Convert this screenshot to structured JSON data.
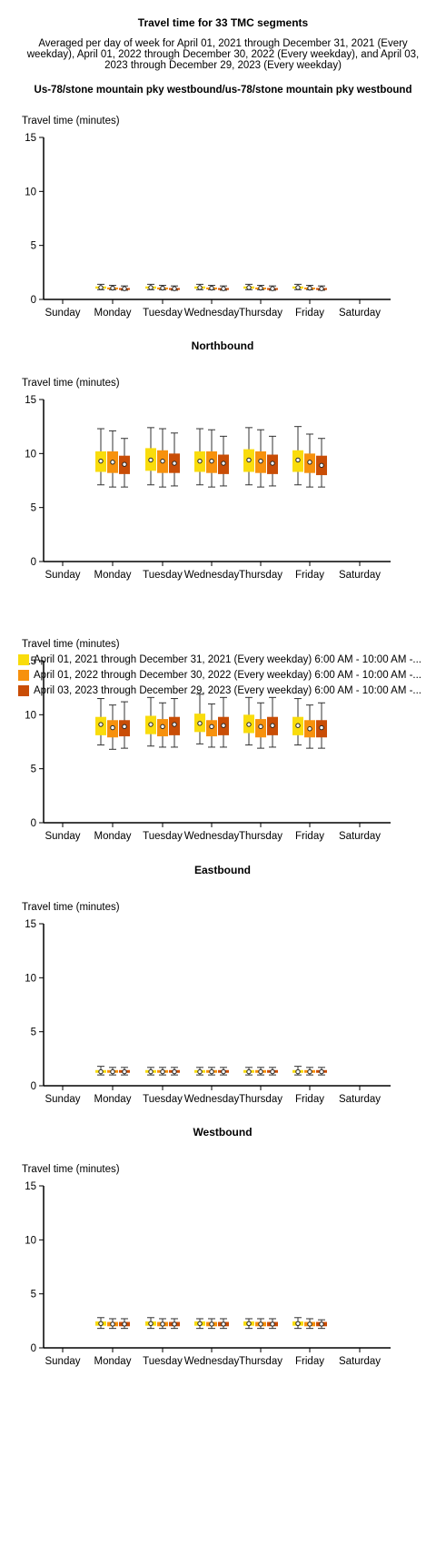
{
  "header": {
    "title": "Travel time for 33 TMC segments",
    "subtitle": "Averaged per day of week for April 01, 2021 through December 31, 2021 (Every weekday), April 01, 2022 through December 30, 2022 (Every weekday), and April 03, 2023 through December 29, 2023 (Every weekday)",
    "route": "Us-78/stone mountain pky westbound/us-78/stone mountain pky westbound"
  },
  "legend": {
    "items": [
      {
        "label": "April 01, 2021 through December 31, 2021 (Every weekday) 6:00 AM - 10:00 AM -...",
        "color": "#f9dc0c"
      },
      {
        "label": "April 01, 2022 through December 30, 2022 (Every weekday) 6:00 AM - 10:00 AM -...",
        "color": "#f7910d"
      },
      {
        "label": "April 03, 2023 through December 29, 2023 (Every weekday) 6:00 AM - 10:00 AM -...",
        "color": "#c94d06"
      }
    ]
  },
  "chart_data": [
    {
      "type": "boxplot",
      "title": "",
      "ylabel": "Travel time (minutes)",
      "ylim": [
        0,
        15
      ],
      "yticks": [
        0,
        5,
        10,
        15
      ],
      "categories": [
        "Sunday",
        "Monday",
        "Tuesday",
        "Wednesday",
        "Thursday",
        "Friday",
        "Saturday"
      ],
      "series": [
        {
          "color": "#f9dc0c",
          "boxes": [
            null,
            {
              "min": 0.9,
              "q1": 1.0,
              "median": 1.1,
              "q3": 1.2,
              "max": 1.4
            },
            {
              "min": 0.9,
              "q1": 1.0,
              "median": 1.1,
              "q3": 1.2,
              "max": 1.4
            },
            {
              "min": 0.9,
              "q1": 1.0,
              "median": 1.1,
              "q3": 1.2,
              "max": 1.4
            },
            {
              "min": 0.9,
              "q1": 1.0,
              "median": 1.1,
              "q3": 1.2,
              "max": 1.4
            },
            {
              "min": 0.9,
              "q1": 1.0,
              "median": 1.1,
              "q3": 1.2,
              "max": 1.4
            },
            null
          ]
        },
        {
          "color": "#f7910d",
          "boxes": [
            null,
            {
              "min": 0.9,
              "q1": 1.0,
              "median": 1.05,
              "q3": 1.1,
              "max": 1.3
            },
            {
              "min": 0.9,
              "q1": 1.0,
              "median": 1.05,
              "q3": 1.1,
              "max": 1.3
            },
            {
              "min": 0.9,
              "q1": 1.0,
              "median": 1.05,
              "q3": 1.1,
              "max": 1.3
            },
            {
              "min": 0.9,
              "q1": 1.0,
              "median": 1.05,
              "q3": 1.1,
              "max": 1.3
            },
            {
              "min": 0.9,
              "q1": 1.0,
              "median": 1.05,
              "q3": 1.1,
              "max": 1.3
            },
            null
          ]
        },
        {
          "color": "#c94d06",
          "boxes": [
            null,
            {
              "min": 0.85,
              "q1": 0.95,
              "median": 1.0,
              "q3": 1.05,
              "max": 1.25
            },
            {
              "min": 0.85,
              "q1": 0.95,
              "median": 1.0,
              "q3": 1.05,
              "max": 1.25
            },
            {
              "min": 0.85,
              "q1": 0.95,
              "median": 1.0,
              "q3": 1.05,
              "max": 1.25
            },
            {
              "min": 0.85,
              "q1": 0.95,
              "median": 1.0,
              "q3": 1.05,
              "max": 1.25
            },
            {
              "min": 0.85,
              "q1": 0.95,
              "median": 1.0,
              "q3": 1.05,
              "max": 1.25
            },
            null
          ]
        }
      ]
    },
    {
      "type": "boxplot",
      "title": "Northbound",
      "ylabel": "Travel time (minutes)",
      "ylim": [
        0,
        15
      ],
      "yticks": [
        0,
        5,
        10,
        15
      ],
      "categories": [
        "Sunday",
        "Monday",
        "Tuesday",
        "Wednesday",
        "Thursday",
        "Friday",
        "Saturday"
      ],
      "series": [
        {
          "color": "#f9dc0c",
          "boxes": [
            null,
            {
              "min": 7.1,
              "q1": 8.3,
              "median": 9.3,
              "q3": 10.2,
              "max": 12.3
            },
            {
              "min": 7.1,
              "q1": 8.4,
              "median": 9.4,
              "q3": 10.5,
              "max": 12.4
            },
            {
              "min": 7.1,
              "q1": 8.3,
              "median": 9.3,
              "q3": 10.2,
              "max": 12.3
            },
            {
              "min": 7.1,
              "q1": 8.3,
              "median": 9.4,
              "q3": 10.4,
              "max": 12.4
            },
            {
              "min": 7.1,
              "q1": 8.3,
              "median": 9.4,
              "q3": 10.3,
              "max": 12.5
            },
            null
          ]
        },
        {
          "color": "#f7910d",
          "boxes": [
            null,
            {
              "min": 6.9,
              "q1": 8.2,
              "median": 9.2,
              "q3": 10.2,
              "max": 12.1
            },
            {
              "min": 6.9,
              "q1": 8.2,
              "median": 9.3,
              "q3": 10.3,
              "max": 12.3
            },
            {
              "min": 6.9,
              "q1": 8.2,
              "median": 9.3,
              "q3": 10.2,
              "max": 12.2
            },
            {
              "min": 6.9,
              "q1": 8.2,
              "median": 9.3,
              "q3": 10.2,
              "max": 12.2
            },
            {
              "min": 6.9,
              "q1": 8.2,
              "median": 9.2,
              "q3": 10.0,
              "max": 11.8
            },
            null
          ]
        },
        {
          "color": "#c94d06",
          "boxes": [
            null,
            {
              "min": 6.9,
              "q1": 8.1,
              "median": 9.0,
              "q3": 9.8,
              "max": 11.4
            },
            {
              "min": 7.0,
              "q1": 8.2,
              "median": 9.1,
              "q3": 10.0,
              "max": 11.9
            },
            {
              "min": 7.0,
              "q1": 8.1,
              "median": 9.1,
              "q3": 9.9,
              "max": 11.6
            },
            {
              "min": 7.0,
              "q1": 8.1,
              "median": 9.1,
              "q3": 9.9,
              "max": 11.6
            },
            {
              "min": 6.9,
              "q1": 8.0,
              "median": 8.9,
              "q3": 9.8,
              "max": 11.4
            },
            null
          ]
        }
      ]
    },
    {
      "type": "boxplot",
      "title": "",
      "ylabel": "Travel time (minutes)",
      "ylim": [
        0,
        15
      ],
      "yticks": [
        0,
        5,
        10,
        15
      ],
      "categories": [
        "Sunday",
        "Monday",
        "Tuesday",
        "Wednesday",
        "Thursday",
        "Friday",
        "Saturday"
      ],
      "series": [
        {
          "color": "#f9dc0c",
          "boxes": [
            null,
            {
              "min": 7.2,
              "q1": 8.1,
              "median": 9.1,
              "q3": 9.8,
              "max": 11.5
            },
            {
              "min": 7.1,
              "q1": 8.2,
              "median": 9.1,
              "q3": 9.9,
              "max": 11.6
            },
            {
              "min": 7.3,
              "q1": 8.4,
              "median": 9.2,
              "q3": 10.1,
              "max": 11.9
            },
            {
              "min": 7.2,
              "q1": 8.3,
              "median": 9.1,
              "q3": 10.0,
              "max": 11.6
            },
            {
              "min": 7.2,
              "q1": 8.1,
              "median": 9.0,
              "q3": 9.8,
              "max": 11.5
            },
            null
          ]
        },
        {
          "color": "#f7910d",
          "boxes": [
            null,
            {
              "min": 6.8,
              "q1": 7.9,
              "median": 8.8,
              "q3": 9.5,
              "max": 10.9
            },
            {
              "min": 7.0,
              "q1": 8.0,
              "median": 8.9,
              "q3": 9.6,
              "max": 11.1
            },
            {
              "min": 7.0,
              "q1": 8.0,
              "median": 8.9,
              "q3": 9.5,
              "max": 11.0
            },
            {
              "min": 6.9,
              "q1": 7.9,
              "median": 8.9,
              "q3": 9.6,
              "max": 11.1
            },
            {
              "min": 6.9,
              "q1": 7.9,
              "median": 8.7,
              "q3": 9.5,
              "max": 10.9
            },
            null
          ]
        },
        {
          "color": "#c94d06",
          "boxes": [
            null,
            {
              "min": 6.9,
              "q1": 8.0,
              "median": 8.9,
              "q3": 9.5,
              "max": 11.2
            },
            {
              "min": 7.0,
              "q1": 8.1,
              "median": 9.1,
              "q3": 9.8,
              "max": 11.5
            },
            {
              "min": 7.0,
              "q1": 8.1,
              "median": 9.0,
              "q3": 9.8,
              "max": 11.6
            },
            {
              "min": 7.0,
              "q1": 8.1,
              "median": 9.0,
              "q3": 9.8,
              "max": 11.6
            },
            {
              "min": 6.9,
              "q1": 7.9,
              "median": 8.8,
              "q3": 9.5,
              "max": 11.1
            },
            null
          ]
        }
      ]
    },
    {
      "type": "boxplot",
      "title": "Eastbound",
      "ylabel": "Travel time (minutes)",
      "ylim": [
        0,
        15
      ],
      "yticks": [
        0,
        5,
        10,
        15
      ],
      "categories": [
        "Sunday",
        "Monday",
        "Tuesday",
        "Wednesday",
        "Thursday",
        "Friday",
        "Saturday"
      ],
      "series": [
        {
          "color": "#f9dc0c",
          "boxes": [
            null,
            {
              "min": 1.0,
              "q1": 1.2,
              "median": 1.3,
              "q3": 1.45,
              "max": 1.8
            },
            {
              "min": 1.0,
              "q1": 1.2,
              "median": 1.3,
              "q3": 1.45,
              "max": 1.7
            },
            {
              "min": 1.0,
              "q1": 1.2,
              "median": 1.3,
              "q3": 1.45,
              "max": 1.7
            },
            {
              "min": 1.0,
              "q1": 1.2,
              "median": 1.3,
              "q3": 1.45,
              "max": 1.7
            },
            {
              "min": 1.0,
              "q1": 1.2,
              "median": 1.3,
              "q3": 1.45,
              "max": 1.8
            },
            null
          ]
        },
        {
          "color": "#f7910d",
          "boxes": [
            null,
            {
              "min": 1.0,
              "q1": 1.2,
              "median": 1.3,
              "q3": 1.45,
              "max": 1.7
            },
            {
              "min": 1.0,
              "q1": 1.2,
              "median": 1.3,
              "q3": 1.45,
              "max": 1.7
            },
            {
              "min": 1.0,
              "q1": 1.2,
              "median": 1.3,
              "q3": 1.45,
              "max": 1.7
            },
            {
              "min": 1.0,
              "q1": 1.2,
              "median": 1.3,
              "q3": 1.45,
              "max": 1.7
            },
            {
              "min": 1.0,
              "q1": 1.2,
              "median": 1.3,
              "q3": 1.45,
              "max": 1.7
            },
            null
          ]
        },
        {
          "color": "#c94d06",
          "boxes": [
            null,
            {
              "min": 1.0,
              "q1": 1.2,
              "median": 1.3,
              "q3": 1.45,
              "max": 1.7
            },
            {
              "min": 1.0,
              "q1": 1.2,
              "median": 1.3,
              "q3": 1.45,
              "max": 1.7
            },
            {
              "min": 1.0,
              "q1": 1.2,
              "median": 1.3,
              "q3": 1.45,
              "max": 1.7
            },
            {
              "min": 1.0,
              "q1": 1.2,
              "median": 1.3,
              "q3": 1.45,
              "max": 1.7
            },
            {
              "min": 1.0,
              "q1": 1.2,
              "median": 1.3,
              "q3": 1.45,
              "max": 1.7
            },
            null
          ]
        }
      ]
    },
    {
      "type": "boxplot",
      "title": "Westbound",
      "ylabel": "Travel time (minutes)",
      "ylim": [
        0,
        15
      ],
      "yticks": [
        0,
        5,
        10,
        15
      ],
      "categories": [
        "Sunday",
        "Monday",
        "Tuesday",
        "Wednesday",
        "Thursday",
        "Friday",
        "Saturday"
      ],
      "series": [
        {
          "color": "#f9dc0c",
          "boxes": [
            null,
            {
              "min": 1.8,
              "q1": 2.05,
              "median": 2.25,
              "q3": 2.45,
              "max": 2.8
            },
            {
              "min": 1.8,
              "q1": 2.05,
              "median": 2.25,
              "q3": 2.45,
              "max": 2.8
            },
            {
              "min": 1.8,
              "q1": 2.05,
              "median": 2.25,
              "q3": 2.45,
              "max": 2.7
            },
            {
              "min": 1.8,
              "q1": 2.05,
              "median": 2.25,
              "q3": 2.45,
              "max": 2.7
            },
            {
              "min": 1.8,
              "q1": 2.05,
              "median": 2.25,
              "q3": 2.45,
              "max": 2.8
            },
            null
          ]
        },
        {
          "color": "#f7910d",
          "boxes": [
            null,
            {
              "min": 1.8,
              "q1": 2.0,
              "median": 2.2,
              "q3": 2.4,
              "max": 2.7
            },
            {
              "min": 1.8,
              "q1": 2.0,
              "median": 2.2,
              "q3": 2.4,
              "max": 2.7
            },
            {
              "min": 1.8,
              "q1": 2.0,
              "median": 2.2,
              "q3": 2.4,
              "max": 2.7
            },
            {
              "min": 1.8,
              "q1": 2.0,
              "median": 2.2,
              "q3": 2.4,
              "max": 2.7
            },
            {
              "min": 1.8,
              "q1": 2.0,
              "median": 2.2,
              "q3": 2.4,
              "max": 2.7
            },
            null
          ]
        },
        {
          "color": "#c94d06",
          "boxes": [
            null,
            {
              "min": 1.8,
              "q1": 2.0,
              "median": 2.2,
              "q3": 2.4,
              "max": 2.7
            },
            {
              "min": 1.8,
              "q1": 2.0,
              "median": 2.2,
              "q3": 2.4,
              "max": 2.7
            },
            {
              "min": 1.8,
              "q1": 2.0,
              "median": 2.2,
              "q3": 2.4,
              "max": 2.7
            },
            {
              "min": 1.8,
              "q1": 2.0,
              "median": 2.2,
              "q3": 2.4,
              "max": 2.7
            },
            {
              "min": 1.8,
              "q1": 2.0,
              "median": 2.2,
              "q3": 2.4,
              "max": 2.6
            },
            null
          ]
        }
      ]
    }
  ]
}
